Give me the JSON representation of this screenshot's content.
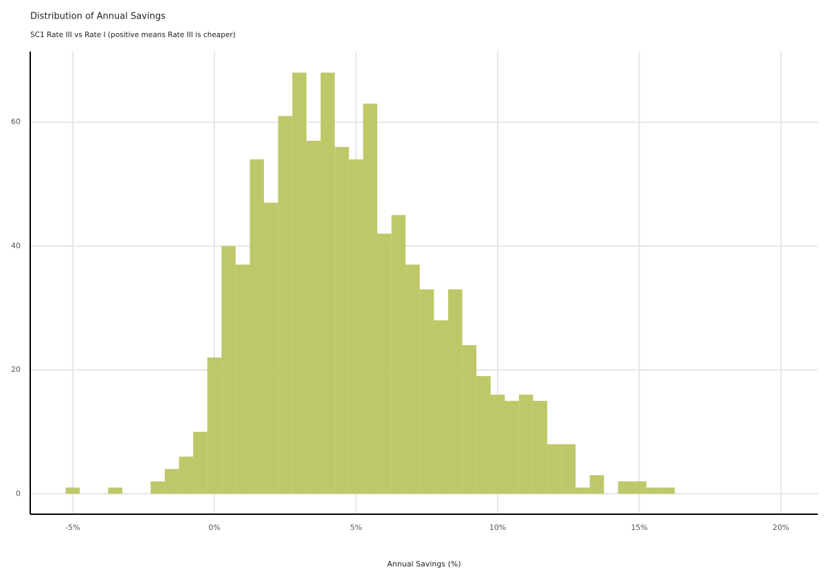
{
  "chart_data": {
    "type": "histogram",
    "title": "Distribution of Annual Savings",
    "subtitle": "SC1 Rate III vs Rate I (positive means Rate III is cheaper)",
    "x_label": "Annual Savings (%)",
    "color": "#bcc561",
    "bins": [
      -5.25,
      -4.75,
      -4.25,
      -3.75,
      -3.25,
      -2.75,
      -2.25,
      -1.75,
      -1.25,
      -0.75,
      -0.25,
      0.25,
      0.75,
      1.25,
      1.75,
      2.25,
      2.75,
      3.25,
      3.75,
      4.25,
      4.75,
      5.25,
      5.75,
      6.25,
      6.75,
      7.25,
      7.75,
      8.25,
      8.75,
      9.25,
      9.75,
      10.25,
      10.75,
      11.25,
      11.75,
      12.25,
      12.75,
      13.25,
      13.75,
      14.25,
      14.75,
      15.25,
      15.75,
      16.25
    ],
    "counts": [
      1,
      0,
      0,
      1,
      0,
      0,
      2,
      4,
      6,
      10,
      22,
      40,
      37,
      54,
      47,
      61,
      68,
      57,
      68,
      56,
      54,
      63,
      42,
      45,
      37,
      33,
      28,
      33,
      24,
      19,
      16,
      15,
      16,
      15,
      8,
      8,
      1,
      3,
      0,
      2,
      2,
      1,
      1
    ],
    "xlim": [
      -6.5,
      21.3
    ],
    "ylim": [
      -3.3,
      71.4
    ],
    "xticks": [
      {
        "value": -5,
        "label": "-5%"
      },
      {
        "value": 0,
        "label": "0%"
      },
      {
        "value": 5,
        "label": "5%"
      },
      {
        "value": 10,
        "label": "10%"
      },
      {
        "value": 15,
        "label": "15%"
      },
      {
        "value": 20,
        "label": "20%"
      }
    ],
    "yticks": [
      0,
      20,
      40,
      60
    ],
    "grid": true
  }
}
